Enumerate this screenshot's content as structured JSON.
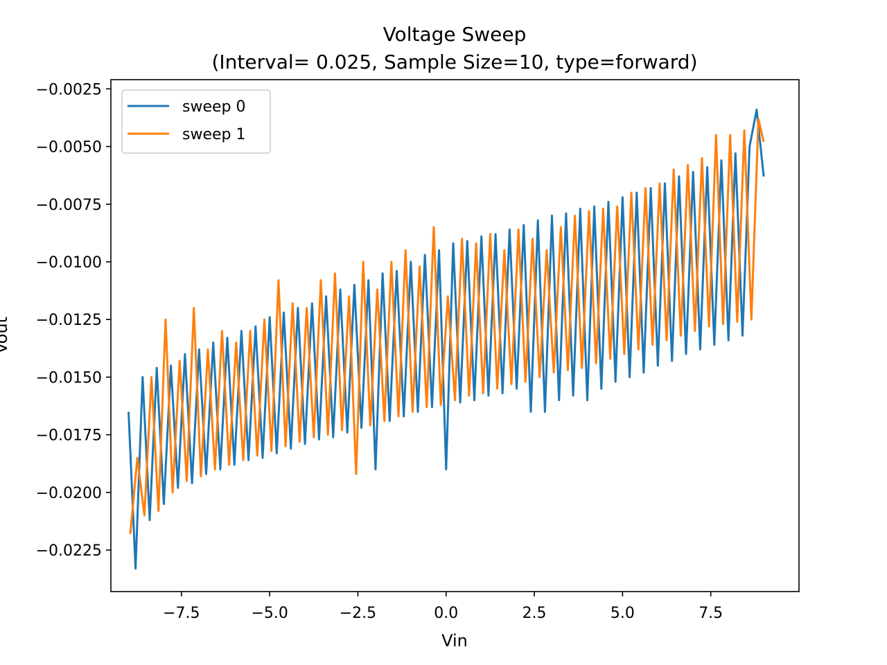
{
  "chart_data": {
    "type": "line",
    "title": "Voltage Sweep",
    "subtitle": "(Interval= 0.025, Sample Size=10, type=forward)",
    "xlabel": "Vin",
    "ylabel": "Vout",
    "xlim": [
      -9.5,
      10.0
    ],
    "ylim": [
      -0.0243,
      -0.0214
    ],
    "ylim_data": [
      -0.0243,
      -0.0021
    ],
    "x_ticks": [
      -7.5,
      -5.0,
      -2.5,
      0.0,
      2.5,
      5.0,
      7.5
    ],
    "x_tick_labels": [
      "−7.5",
      "−5.0",
      "−2.5",
      "0.0",
      "2.5",
      "5.0",
      "7.5"
    ],
    "y_ticks": [
      -0.0025,
      -0.005,
      -0.0075,
      -0.01,
      -0.0125,
      -0.015,
      -0.0175,
      -0.02,
      -0.0225
    ],
    "y_tick_labels": [
      "−0.0025",
      "−0.0050",
      "−0.0075",
      "−0.0100",
      "−0.0125",
      "−0.0150",
      "−0.0175",
      "−0.0200",
      "−0.0225"
    ],
    "grid": false,
    "legend_position": "top-left",
    "series": [
      {
        "name": "sweep 0",
        "color": "#1f77b4",
        "x": [
          -9.0,
          -8.8,
          -8.6,
          -8.4,
          -8.2,
          -8.0,
          -7.8,
          -7.6,
          -7.4,
          -7.2,
          -7.0,
          -6.8,
          -6.6,
          -6.4,
          -6.2,
          -6.0,
          -5.8,
          -5.6,
          -5.4,
          -5.2,
          -5.0,
          -4.8,
          -4.6,
          -4.4,
          -4.2,
          -4.0,
          -3.8,
          -3.6,
          -3.4,
          -3.2,
          -3.0,
          -2.8,
          -2.6,
          -2.4,
          -2.2,
          -2.0,
          -1.8,
          -1.6,
          -1.4,
          -1.2,
          -1.0,
          -0.8,
          -0.6,
          -0.4,
          -0.2,
          0.0,
          0.2,
          0.4,
          0.6,
          0.8,
          1.0,
          1.2,
          1.4,
          1.6,
          1.8,
          2.0,
          2.2,
          2.4,
          2.6,
          2.8,
          3.0,
          3.2,
          3.4,
          3.6,
          3.8,
          4.0,
          4.2,
          4.4,
          4.6,
          4.8,
          5.0,
          5.2,
          5.4,
          5.6,
          5.8,
          6.0,
          6.2,
          6.4,
          6.6,
          6.8,
          7.0,
          7.2,
          7.4,
          7.6,
          7.8,
          8.0,
          8.2,
          8.4,
          8.6,
          8.8,
          9.0
        ],
        "y": [
          -0.0165,
          -0.0233,
          -0.015,
          -0.0212,
          -0.0146,
          -0.0205,
          -0.0145,
          -0.0198,
          -0.014,
          -0.0196,
          -0.0138,
          -0.0192,
          -0.0135,
          -0.019,
          -0.0133,
          -0.0188,
          -0.013,
          -0.0186,
          -0.0128,
          -0.0185,
          -0.0124,
          -0.0183,
          -0.0122,
          -0.0181,
          -0.012,
          -0.0179,
          -0.0118,
          -0.0177,
          -0.0115,
          -0.0176,
          -0.0112,
          -0.0174,
          -0.011,
          -0.0172,
          -0.0108,
          -0.019,
          -0.0105,
          -0.0169,
          -0.0104,
          -0.0167,
          -0.01,
          -0.0165,
          -0.0097,
          -0.0163,
          -0.0095,
          -0.019,
          -0.0092,
          -0.0161,
          -0.0091,
          -0.016,
          -0.0089,
          -0.0158,
          -0.0088,
          -0.0157,
          -0.0086,
          -0.0155,
          -0.0084,
          -0.0165,
          -0.0082,
          -0.0165,
          -0.008,
          -0.016,
          -0.0079,
          -0.0158,
          -0.0077,
          -0.016,
          -0.0076,
          -0.0155,
          -0.0074,
          -0.0152,
          -0.0072,
          -0.015,
          -0.007,
          -0.0148,
          -0.0068,
          -0.0145,
          -0.0066,
          -0.0143,
          -0.0063,
          -0.014,
          -0.0061,
          -0.0138,
          -0.0059,
          -0.0136,
          -0.0056,
          -0.0134,
          -0.0053,
          -0.0132,
          -0.005,
          -0.0034,
          -0.0063
        ]
      },
      {
        "name": "sweep 1",
        "color": "#ff7f0e",
        "x": [
          -8.95,
          -8.75,
          -8.55,
          -8.35,
          -8.15,
          -7.95,
          -7.75,
          -7.55,
          -7.35,
          -7.15,
          -6.95,
          -6.75,
          -6.55,
          -6.35,
          -6.15,
          -5.95,
          -5.75,
          -5.55,
          -5.35,
          -5.15,
          -4.95,
          -4.75,
          -4.55,
          -4.35,
          -4.15,
          -3.95,
          -3.75,
          -3.55,
          -3.35,
          -3.15,
          -2.95,
          -2.75,
          -2.55,
          -2.35,
          -2.15,
          -1.95,
          -1.75,
          -1.55,
          -1.35,
          -1.15,
          -0.95,
          -0.75,
          -0.55,
          -0.35,
          -0.15,
          0.05,
          0.25,
          0.45,
          0.65,
          0.85,
          1.05,
          1.25,
          1.45,
          1.65,
          1.85,
          2.05,
          2.25,
          2.45,
          2.65,
          2.85,
          3.05,
          3.25,
          3.45,
          3.65,
          3.85,
          4.05,
          4.25,
          4.45,
          4.65,
          4.85,
          5.05,
          5.25,
          5.45,
          5.65,
          5.85,
          6.05,
          6.25,
          6.45,
          6.65,
          6.85,
          7.05,
          7.25,
          7.45,
          7.65,
          7.85,
          8.05,
          8.25,
          8.45,
          8.65,
          8.85,
          9.0
        ],
        "y": [
          -0.0218,
          -0.0185,
          -0.021,
          -0.015,
          -0.0208,
          -0.0125,
          -0.02,
          -0.0143,
          -0.0195,
          -0.012,
          -0.0193,
          -0.0138,
          -0.019,
          -0.013,
          -0.0188,
          -0.0135,
          -0.0186,
          -0.013,
          -0.0184,
          -0.0125,
          -0.0182,
          -0.0108,
          -0.018,
          -0.0118,
          -0.0178,
          -0.012,
          -0.0176,
          -0.0108,
          -0.0175,
          -0.0105,
          -0.0173,
          -0.0115,
          -0.0192,
          -0.01,
          -0.0171,
          -0.0112,
          -0.0169,
          -0.01,
          -0.0167,
          -0.0095,
          -0.0165,
          -0.0102,
          -0.0163,
          -0.0085,
          -0.0162,
          -0.0115,
          -0.016,
          -0.009,
          -0.0158,
          -0.0092,
          -0.0157,
          -0.0088,
          -0.0155,
          -0.0095,
          -0.0153,
          -0.0086,
          -0.0152,
          -0.009,
          -0.015,
          -0.0095,
          -0.0148,
          -0.0085,
          -0.0147,
          -0.008,
          -0.0146,
          -0.0078,
          -0.0144,
          -0.0077,
          -0.0142,
          -0.0076,
          -0.014,
          -0.007,
          -0.0138,
          -0.0068,
          -0.0136,
          -0.0066,
          -0.0134,
          -0.006,
          -0.0132,
          -0.0058,
          -0.013,
          -0.0055,
          -0.0128,
          -0.0045,
          -0.0127,
          -0.0045,
          -0.0126,
          -0.0043,
          -0.0125,
          -0.0038,
          -0.0048
        ]
      }
    ]
  }
}
